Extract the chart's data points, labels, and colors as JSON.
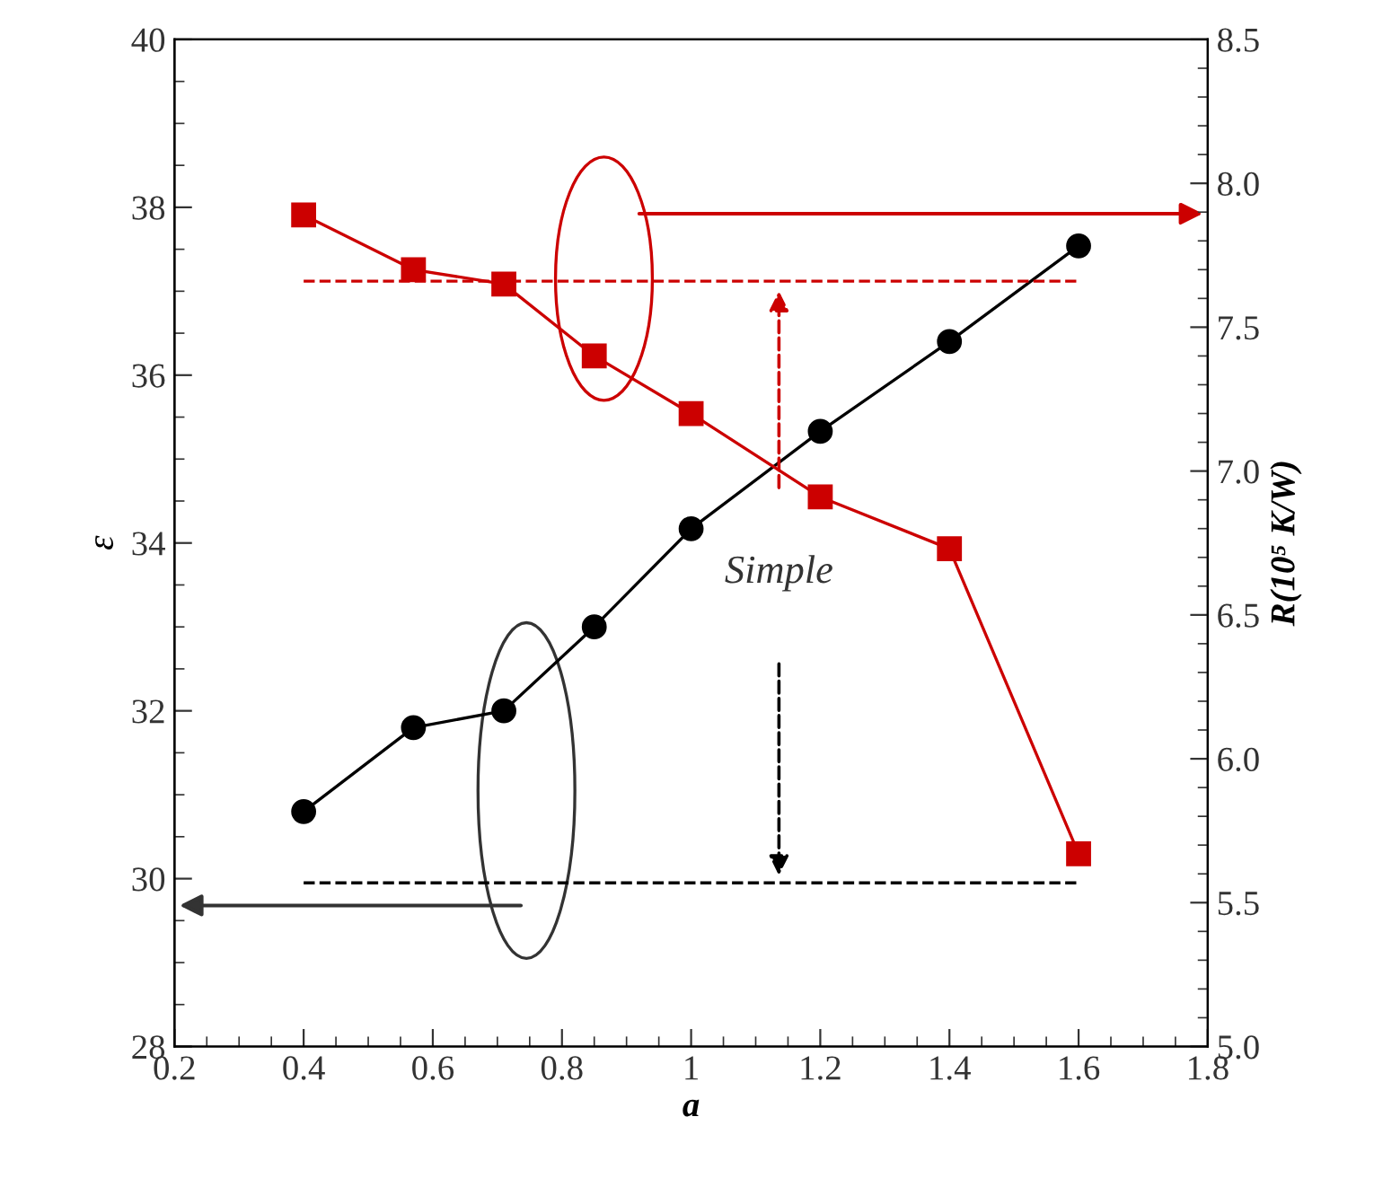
{
  "chart_data": {
    "type": "line",
    "xlabel": "a",
    "ylabel": "ε",
    "y2label": "R(10⁵ K/W)",
    "x": [
      0.4,
      0.57,
      0.71,
      0.85,
      1.0,
      1.2,
      1.4,
      1.6
    ],
    "series": [
      {
        "color": "#000000",
        "marker": "circle",
        "values": [
          30.8,
          31.8,
          32.0,
          33.0,
          34.17,
          35.33,
          36.4,
          37.54
        ]
      },
      {
        "color": "#cc0000",
        "marker": "square",
        "axis": "y2",
        "values": [
          7.89,
          7.7,
          7.65,
          7.4,
          7.2,
          6.91,
          6.73,
          5.67
        ]
      }
    ],
    "xlim": [
      0.2,
      1.8
    ],
    "xticks": [
      0.2,
      0.4,
      0.6,
      0.8,
      1,
      1.2,
      1.4,
      1.6,
      1.8
    ],
    "ylim": [
      28,
      40
    ],
    "yticks": [
      28,
      30,
      32,
      34,
      36,
      38,
      40
    ],
    "y2lim": [
      5.0,
      8.5
    ],
    "y2ticks": [
      {
        "value": 5.0,
        "label": "5.0"
      },
      {
        "value": 5.5,
        "label": "5.5"
      },
      {
        "value": 6.0,
        "label": "6.0"
      },
      {
        "value": 6.5,
        "label": "6.5"
      },
      {
        "value": 7.0,
        "label": "7.0"
      },
      {
        "value": 7.5,
        "label": "7.5"
      },
      {
        "value": 8.0,
        "label": "8.0"
      },
      {
        "value": 8.5,
        "label": "8.5"
      }
    ],
    "ref_lines": [
      {
        "axis": "y",
        "value": 29.95,
        "color": "#000000",
        "line_style": "dashed"
      },
      {
        "axis": "y2",
        "value": 7.66,
        "color": "#cc0000",
        "line_style": "dashed"
      }
    ],
    "annotations": [
      "Simple"
    ],
    "grid": false,
    "legend": false
  }
}
